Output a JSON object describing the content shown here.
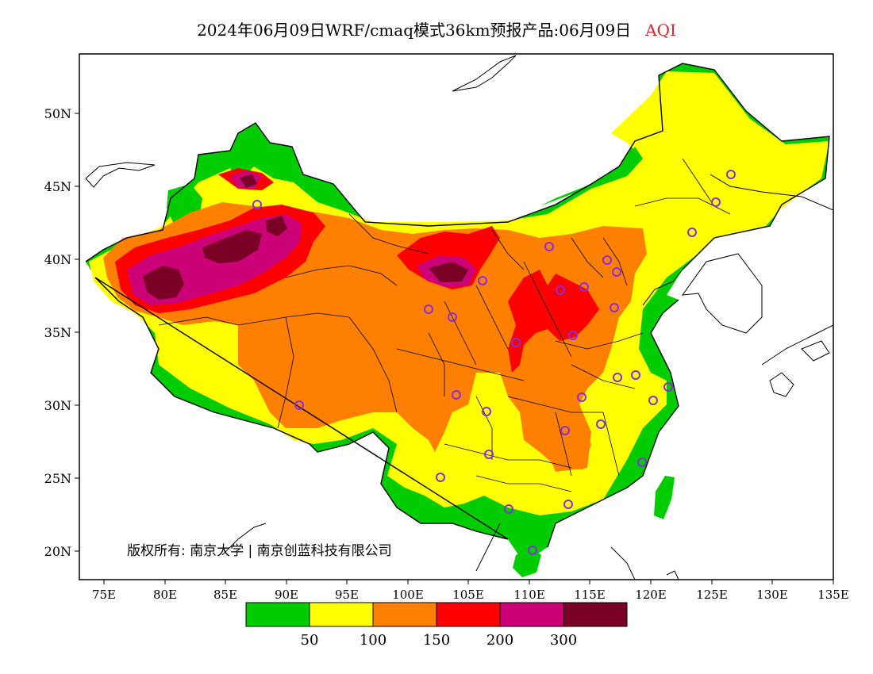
{
  "title": {
    "main": "2024年06月09日WRF/cmaq模式36km预报产品:06月09日",
    "variable": "AQI"
  },
  "axes": {
    "lat_labels": [
      "50N",
      "45N",
      "40N",
      "35N",
      "30N",
      "25N",
      "20N"
    ],
    "lon_labels": [
      "75E",
      "80E",
      "85E",
      "90E",
      "95E",
      "100E",
      "105E",
      "110E",
      "115E",
      "120E",
      "125E",
      "130E",
      "135E"
    ]
  },
  "copyright": "版权所有: 南京大学 | 南京创蓝科技有限公司",
  "legend": {
    "colors": [
      "#00cc00",
      "#ffff00",
      "#ff8000",
      "#ff0000",
      "#cc0077",
      "#7a0026"
    ],
    "labels": [
      "50",
      "100",
      "150",
      "200",
      "300"
    ]
  },
  "layers": {
    "background": "#ffffff",
    "colors": {
      "green": "#00cc00",
      "yellow": "#ffff00",
      "orange": "#ff8000",
      "red": "#ff0000",
      "magenta": "#cc0077",
      "maroon": "#7a0026",
      "city_marker": "#8b2be2"
    }
  }
}
